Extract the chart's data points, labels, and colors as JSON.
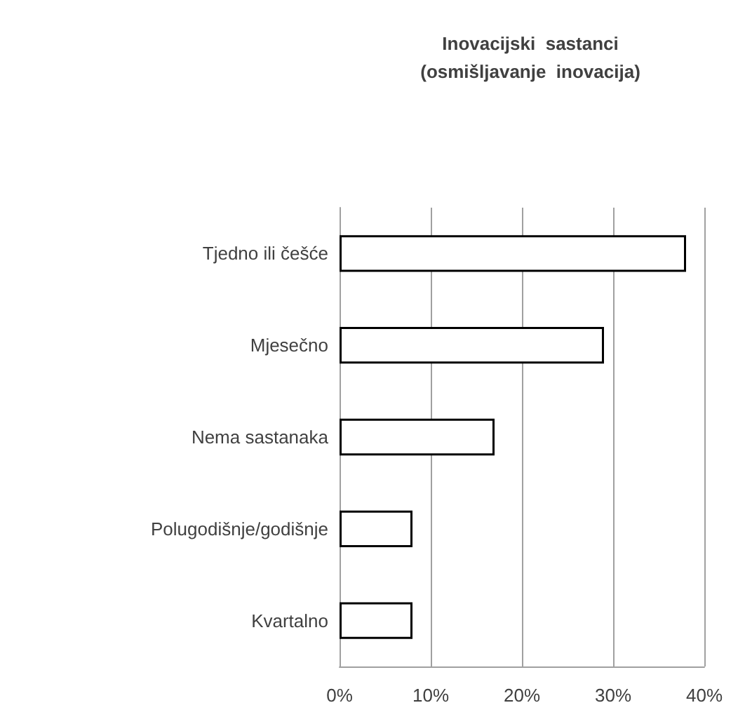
{
  "chart_data": {
    "type": "bar",
    "orientation": "horizontal",
    "title": "Inovacijski  sastanci\n(osmišljavanje  inovacija)",
    "categories": [
      "Tjedno ili češće",
      "Mjesečno",
      "Nema sastanaka",
      "Polugodišnje/godišnje",
      "Kvartalno"
    ],
    "values": [
      38,
      29,
      17,
      8,
      8
    ],
    "color": "#ffffff",
    "xlim": [
      0,
      40
    ],
    "xticks": [
      {
        "value": 0,
        "label": "0%"
      },
      {
        "value": 10,
        "label": "10%"
      },
      {
        "value": 20,
        "label": "20%"
      },
      {
        "value": 30,
        "label": "30%"
      },
      {
        "value": 40,
        "label": "40%"
      }
    ],
    "grid": "x"
  }
}
